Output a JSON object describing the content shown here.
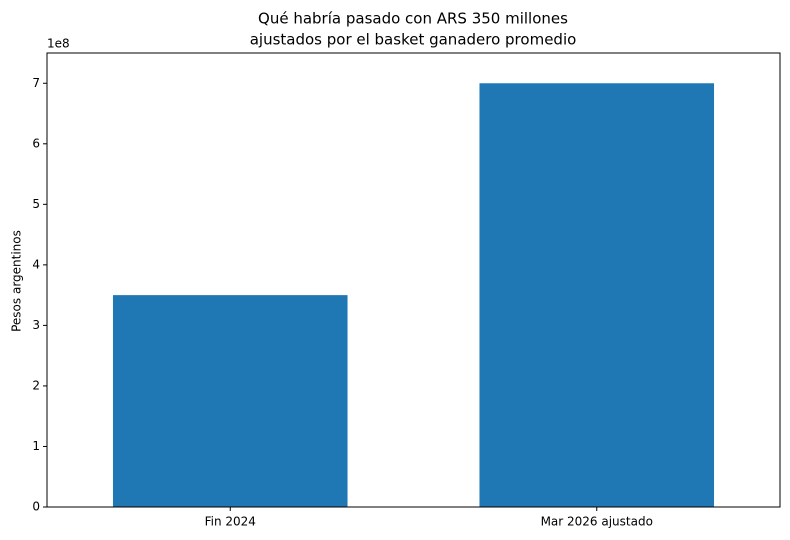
{
  "chart_data": {
    "type": "bar",
    "title": [
      "Qué habría pasado con ARS 350 millones",
      "ajustados por el basket ganadero promedio"
    ],
    "y_label": "Pesos argentinos",
    "y_offset_label": "1e8",
    "categories": [
      "Fin 2024",
      "Mar 2026 ajustado"
    ],
    "values": [
      350000000,
      700000000
    ],
    "color": "#1f77b4",
    "ylim": [
      0,
      750000000
    ],
    "yticks": [
      {
        "value": 0,
        "label": "0"
      },
      {
        "value": 100000000,
        "label": "1"
      },
      {
        "value": 200000000,
        "label": "2"
      },
      {
        "value": 300000000,
        "label": "3"
      },
      {
        "value": 400000000,
        "label": "4"
      },
      {
        "value": 500000000,
        "label": "5"
      },
      {
        "value": 600000000,
        "label": "6"
      },
      {
        "value": 700000000,
        "label": "7"
      }
    ],
    "grid": false
  }
}
